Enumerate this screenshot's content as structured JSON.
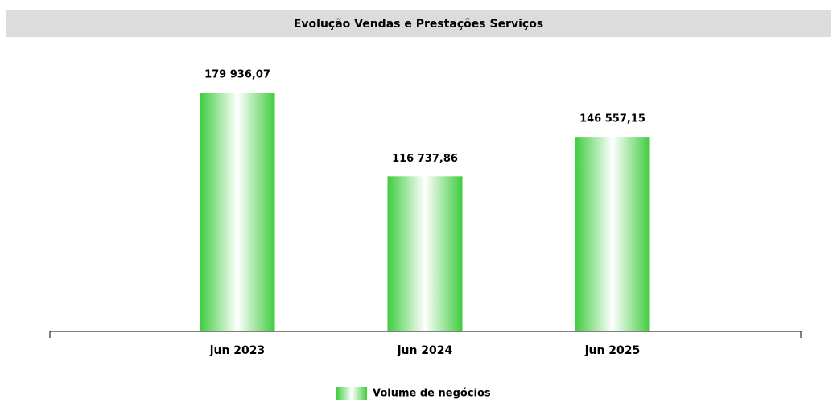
{
  "chart_data": {
    "type": "bar",
    "title": "Evolução Vendas e Prestações Serviços",
    "categories": [
      "jun 2023",
      "jun 2024",
      "jun 2025"
    ],
    "series": [
      {
        "name": "Volume de negócios",
        "color": "#3fcc3f",
        "values": [
          179936.07,
          116737.86,
          146557.15
        ],
        "value_labels": [
          "179 936,07",
          "116 737,86",
          "146 557,15"
        ]
      }
    ]
  }
}
